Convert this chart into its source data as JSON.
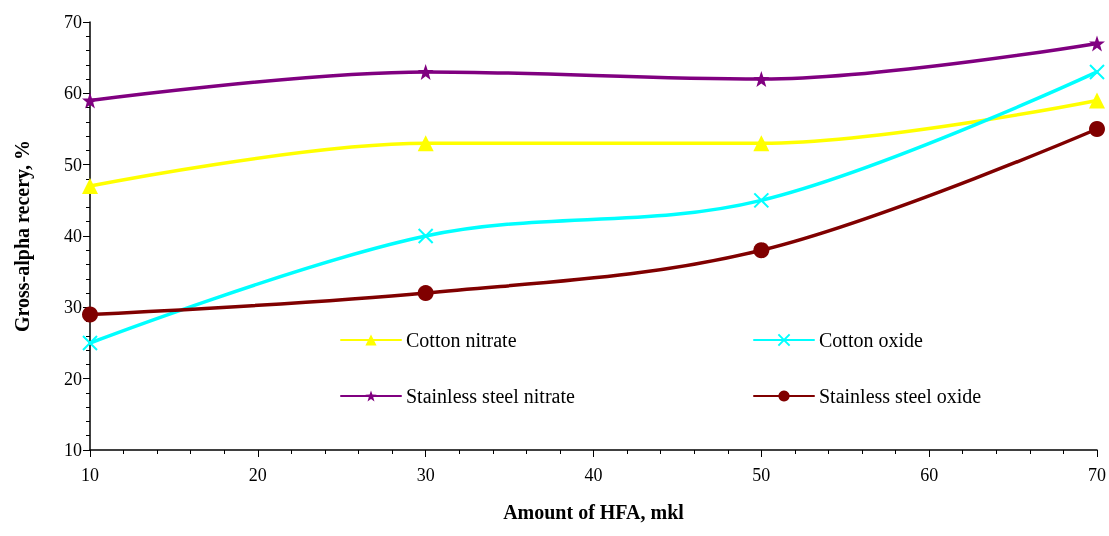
{
  "chart_data": {
    "type": "line",
    "xlabel": "Amount of HFA, mkl",
    "ylabel": "Gross-alpha recery, %",
    "x": [
      10,
      30,
      50,
      70
    ],
    "series": [
      {
        "name": "Cotton nitrate",
        "color": "#ffff00",
        "marker": "triangle",
        "values": [
          47,
          53,
          53,
          59
        ]
      },
      {
        "name": "Cotton oxide",
        "color": "#00ffff",
        "marker": "cross",
        "values": [
          25,
          40,
          45,
          63
        ]
      },
      {
        "name": "Stainless steel nitrate",
        "color": "#800080",
        "marker": "star",
        "values": [
          59,
          63,
          62,
          67
        ]
      },
      {
        "name": "Stainless steel oxide",
        "color": "#800000",
        "marker": "circle",
        "values": [
          29,
          32,
          38,
          55
        ]
      }
    ],
    "xlim": [
      10,
      70
    ],
    "xticks": [
      10,
      20,
      30,
      40,
      50,
      60,
      70
    ],
    "ylim": [
      10,
      70
    ],
    "yticks": [
      10,
      20,
      30,
      40,
      50,
      60,
      70
    ],
    "grid": false,
    "legend": "bottom",
    "line_style": "solid"
  }
}
